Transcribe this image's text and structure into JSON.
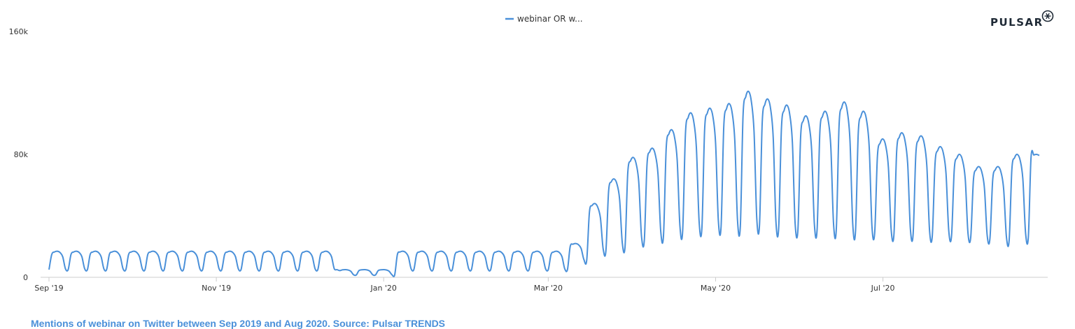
{
  "brand": {
    "name": "PULSAR",
    "logo_icon": "pulsar-star-icon"
  },
  "caption": "Mentions of webinar on Twitter between Sep 2019 and Aug 2020. Source: Pulsar TRENDS",
  "colors": {
    "series": "#4a90d9",
    "caption": "#4a90d9",
    "axis": "#cccccc",
    "text": "#333333"
  },
  "chart_data": {
    "type": "line",
    "title": "",
    "xlabel": "",
    "ylabel": "",
    "x_type": "date",
    "x_range": [
      "2019-09-01",
      "2020-08-27"
    ],
    "ylim": [
      0,
      160000
    ],
    "y_ticks": [
      {
        "value": 0,
        "label": "0"
      },
      {
        "value": 80000,
        "label": "80k"
      },
      {
        "value": 160000,
        "label": "160k"
      }
    ],
    "x_ticks": [
      {
        "date": "2019-09-01",
        "label": "Sep '19"
      },
      {
        "date": "2019-11-01",
        "label": "Nov '19"
      },
      {
        "date": "2020-01-01",
        "label": "Jan '20"
      },
      {
        "date": "2020-03-01",
        "label": "Mar '20"
      },
      {
        "date": "2020-05-01",
        "label": "May '20"
      },
      {
        "date": "2020-07-01",
        "label": "Jul '20"
      }
    ],
    "grid": false,
    "legend": {
      "position": "top-center"
    },
    "series": [
      {
        "name": "webinar OR w...",
        "frequency": "daily",
        "weekday_peak_plateau": [
          {
            "period_start": "2019-09-01",
            "period_end": "2019-12-15",
            "peak": 17000,
            "trough": 5000
          },
          {
            "period_start": "2019-12-16",
            "period_end": "2020-01-05",
            "peak": 5000,
            "trough": 1500
          },
          {
            "period_start": "2020-01-06",
            "period_end": "2020-03-08",
            "peak": 17000,
            "trough": 5000
          },
          {
            "period_start": "2020-03-09",
            "period_end": "2020-03-15",
            "peak": 22000,
            "trough": 11000
          },
          {
            "period_start": "2020-03-16",
            "period_end": "2020-03-22",
            "peak": 48000,
            "trough": 17000
          },
          {
            "period_start": "2020-03-23",
            "period_end": "2020-03-29",
            "peak": 64000,
            "trough": 20000
          },
          {
            "period_start": "2020-03-30",
            "period_end": "2020-04-05",
            "peak": 78000,
            "trough": 24000
          },
          {
            "period_start": "2020-04-06",
            "period_end": "2020-04-12",
            "peak": 84000,
            "trough": 27000
          },
          {
            "period_start": "2020-04-13",
            "period_end": "2020-04-19",
            "peak": 96000,
            "trough": 30000
          },
          {
            "period_start": "2020-04-20",
            "period_end": "2020-04-26",
            "peak": 107000,
            "trough": 32000
          },
          {
            "period_start": "2020-04-27",
            "period_end": "2020-05-03",
            "peak": 110000,
            "trough": 33000
          },
          {
            "period_start": "2020-05-04",
            "period_end": "2020-05-10",
            "peak": 113000,
            "trough": 33000
          },
          {
            "period_start": "2020-05-11",
            "period_end": "2020-05-17",
            "peak": 121000,
            "trough": 34000
          },
          {
            "period_start": "2020-05-18",
            "period_end": "2020-05-24",
            "peak": 116000,
            "trough": 32000
          },
          {
            "period_start": "2020-05-25",
            "period_end": "2020-05-31",
            "peak": 112000,
            "trough": 31000
          },
          {
            "period_start": "2020-06-01",
            "period_end": "2020-06-07",
            "peak": 105000,
            "trough": 31000
          },
          {
            "period_start": "2020-06-08",
            "period_end": "2020-06-14",
            "peak": 108000,
            "trough": 31000
          },
          {
            "period_start": "2020-06-15",
            "period_end": "2020-06-21",
            "peak": 114000,
            "trough": 30000
          },
          {
            "period_start": "2020-06-22",
            "period_end": "2020-06-28",
            "peak": 108000,
            "trough": 29000
          },
          {
            "period_start": "2020-06-29",
            "period_end": "2020-07-05",
            "peak": 90000,
            "trough": 28000
          },
          {
            "period_start": "2020-07-06",
            "period_end": "2020-07-12",
            "peak": 94000,
            "trough": 28000
          },
          {
            "period_start": "2020-07-13",
            "period_end": "2020-07-19",
            "peak": 92000,
            "trough": 27000
          },
          {
            "period_start": "2020-07-20",
            "period_end": "2020-07-26",
            "peak": 85000,
            "trough": 27000
          },
          {
            "period_start": "2020-07-27",
            "period_end": "2020-08-02",
            "peak": 80000,
            "trough": 26000
          },
          {
            "period_start": "2020-08-03",
            "period_end": "2020-08-09",
            "peak": 72000,
            "trough": 25000
          },
          {
            "period_start": "2020-08-10",
            "period_end": "2020-08-16",
            "peak": 72000,
            "trough": 24000
          },
          {
            "period_start": "2020-08-17",
            "period_end": "2020-08-23",
            "peak": 80000,
            "trough": 26000
          },
          {
            "period_start": "2020-08-24",
            "period_end": "2020-08-27",
            "peak": 80000,
            "trough": 70000
          }
        ]
      }
    ]
  }
}
